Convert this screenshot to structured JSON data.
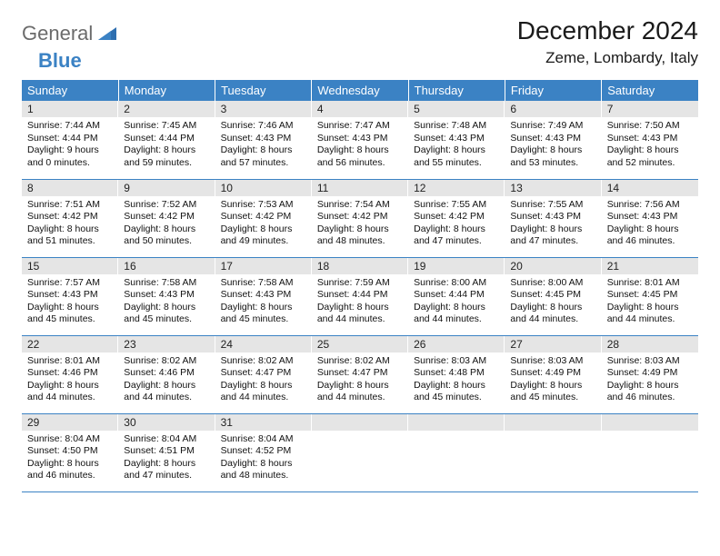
{
  "logo": {
    "text1": "General",
    "text2": "Blue"
  },
  "title": "December 2024",
  "location": "Zeme, Lombardy, Italy",
  "colors": {
    "header_bg": "#3b82c4",
    "header_fg": "#ffffff",
    "daynum_bg": "#e5e5e5",
    "rule": "#3b82c4",
    "logo_gray": "#6b6b6b",
    "logo_blue": "#3b82c4"
  },
  "weekdays": [
    "Sunday",
    "Monday",
    "Tuesday",
    "Wednesday",
    "Thursday",
    "Friday",
    "Saturday"
  ],
  "weeks": [
    [
      {
        "n": "1",
        "sr": "7:44 AM",
        "ss": "4:44 PM",
        "dl": "9 hours and 0 minutes."
      },
      {
        "n": "2",
        "sr": "7:45 AM",
        "ss": "4:44 PM",
        "dl": "8 hours and 59 minutes."
      },
      {
        "n": "3",
        "sr": "7:46 AM",
        "ss": "4:43 PM",
        "dl": "8 hours and 57 minutes."
      },
      {
        "n": "4",
        "sr": "7:47 AM",
        "ss": "4:43 PM",
        "dl": "8 hours and 56 minutes."
      },
      {
        "n": "5",
        "sr": "7:48 AM",
        "ss": "4:43 PM",
        "dl": "8 hours and 55 minutes."
      },
      {
        "n": "6",
        "sr": "7:49 AM",
        "ss": "4:43 PM",
        "dl": "8 hours and 53 minutes."
      },
      {
        "n": "7",
        "sr": "7:50 AM",
        "ss": "4:43 PM",
        "dl": "8 hours and 52 minutes."
      }
    ],
    [
      {
        "n": "8",
        "sr": "7:51 AM",
        "ss": "4:42 PM",
        "dl": "8 hours and 51 minutes."
      },
      {
        "n": "9",
        "sr": "7:52 AM",
        "ss": "4:42 PM",
        "dl": "8 hours and 50 minutes."
      },
      {
        "n": "10",
        "sr": "7:53 AM",
        "ss": "4:42 PM",
        "dl": "8 hours and 49 minutes."
      },
      {
        "n": "11",
        "sr": "7:54 AM",
        "ss": "4:42 PM",
        "dl": "8 hours and 48 minutes."
      },
      {
        "n": "12",
        "sr": "7:55 AM",
        "ss": "4:42 PM",
        "dl": "8 hours and 47 minutes."
      },
      {
        "n": "13",
        "sr": "7:55 AM",
        "ss": "4:43 PM",
        "dl": "8 hours and 47 minutes."
      },
      {
        "n": "14",
        "sr": "7:56 AM",
        "ss": "4:43 PM",
        "dl": "8 hours and 46 minutes."
      }
    ],
    [
      {
        "n": "15",
        "sr": "7:57 AM",
        "ss": "4:43 PM",
        "dl": "8 hours and 45 minutes."
      },
      {
        "n": "16",
        "sr": "7:58 AM",
        "ss": "4:43 PM",
        "dl": "8 hours and 45 minutes."
      },
      {
        "n": "17",
        "sr": "7:58 AM",
        "ss": "4:43 PM",
        "dl": "8 hours and 45 minutes."
      },
      {
        "n": "18",
        "sr": "7:59 AM",
        "ss": "4:44 PM",
        "dl": "8 hours and 44 minutes."
      },
      {
        "n": "19",
        "sr": "8:00 AM",
        "ss": "4:44 PM",
        "dl": "8 hours and 44 minutes."
      },
      {
        "n": "20",
        "sr": "8:00 AM",
        "ss": "4:45 PM",
        "dl": "8 hours and 44 minutes."
      },
      {
        "n": "21",
        "sr": "8:01 AM",
        "ss": "4:45 PM",
        "dl": "8 hours and 44 minutes."
      }
    ],
    [
      {
        "n": "22",
        "sr": "8:01 AM",
        "ss": "4:46 PM",
        "dl": "8 hours and 44 minutes."
      },
      {
        "n": "23",
        "sr": "8:02 AM",
        "ss": "4:46 PM",
        "dl": "8 hours and 44 minutes."
      },
      {
        "n": "24",
        "sr": "8:02 AM",
        "ss": "4:47 PM",
        "dl": "8 hours and 44 minutes."
      },
      {
        "n": "25",
        "sr": "8:02 AM",
        "ss": "4:47 PM",
        "dl": "8 hours and 44 minutes."
      },
      {
        "n": "26",
        "sr": "8:03 AM",
        "ss": "4:48 PM",
        "dl": "8 hours and 45 minutes."
      },
      {
        "n": "27",
        "sr": "8:03 AM",
        "ss": "4:49 PM",
        "dl": "8 hours and 45 minutes."
      },
      {
        "n": "28",
        "sr": "8:03 AM",
        "ss": "4:49 PM",
        "dl": "8 hours and 46 minutes."
      }
    ],
    [
      {
        "n": "29",
        "sr": "8:04 AM",
        "ss": "4:50 PM",
        "dl": "8 hours and 46 minutes."
      },
      {
        "n": "30",
        "sr": "8:04 AM",
        "ss": "4:51 PM",
        "dl": "8 hours and 47 minutes."
      },
      {
        "n": "31",
        "sr": "8:04 AM",
        "ss": "4:52 PM",
        "dl": "8 hours and 48 minutes."
      },
      null,
      null,
      null,
      null
    ]
  ],
  "labels": {
    "sunrise": "Sunrise:",
    "sunset": "Sunset:",
    "daylight": "Daylight:"
  }
}
